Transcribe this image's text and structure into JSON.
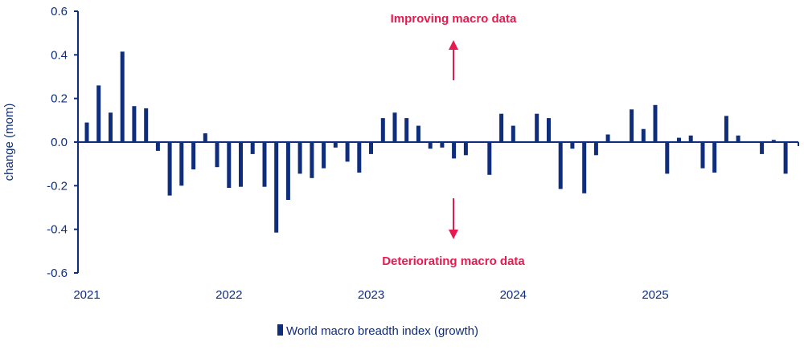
{
  "colors": {
    "bar": "#0e2d7c",
    "axis": "#0e2d7c",
    "annotation": "#e8194f",
    "text": "#0e2d7c"
  },
  "chart_data": {
    "type": "bar",
    "title": "",
    "xlabel": "",
    "ylabel": "change (mom)",
    "ylim": [
      -0.6,
      0.6
    ],
    "yticks": [
      "0.6",
      "0.4",
      "0.2",
      "0.0",
      "-0.2",
      "-0.4",
      "-0.6"
    ],
    "ytick_values": [
      0.6,
      0.4,
      0.2,
      0.0,
      -0.2,
      -0.4,
      -0.6
    ],
    "xticks": [
      "2021",
      "2022",
      "2023",
      "2024",
      "2025"
    ],
    "x_start": "2021-01",
    "frequency": "monthly",
    "grid": false,
    "legend_position": "bottom",
    "series": [
      {
        "name": "World macro breadth index (growth)",
        "values": [
          0.09,
          0.26,
          0.135,
          0.415,
          0.165,
          0.155,
          -0.04,
          -0.245,
          -0.2,
          -0.125,
          0.04,
          -0.115,
          -0.21,
          -0.205,
          -0.055,
          -0.205,
          -0.415,
          -0.265,
          -0.145,
          -0.165,
          -0.12,
          -0.025,
          -0.09,
          -0.14,
          -0.055,
          0.11,
          0.135,
          0.11,
          0.075,
          -0.03,
          -0.025,
          -0.075,
          -0.06,
          0,
          -0.15,
          0.13,
          0.075,
          0,
          0.13,
          0.11,
          -0.215,
          -0.03,
          -0.235,
          -0.06,
          0.035,
          0,
          0.15,
          0.06,
          0.17,
          -0.145,
          0.02,
          0.03,
          -0.12,
          -0.14,
          0.12,
          0.03,
          0,
          -0.055,
          0.01,
          -0.145
        ]
      }
    ],
    "annotations": {
      "up": "Improving macro data",
      "down": "Deteriorating macro data"
    }
  }
}
